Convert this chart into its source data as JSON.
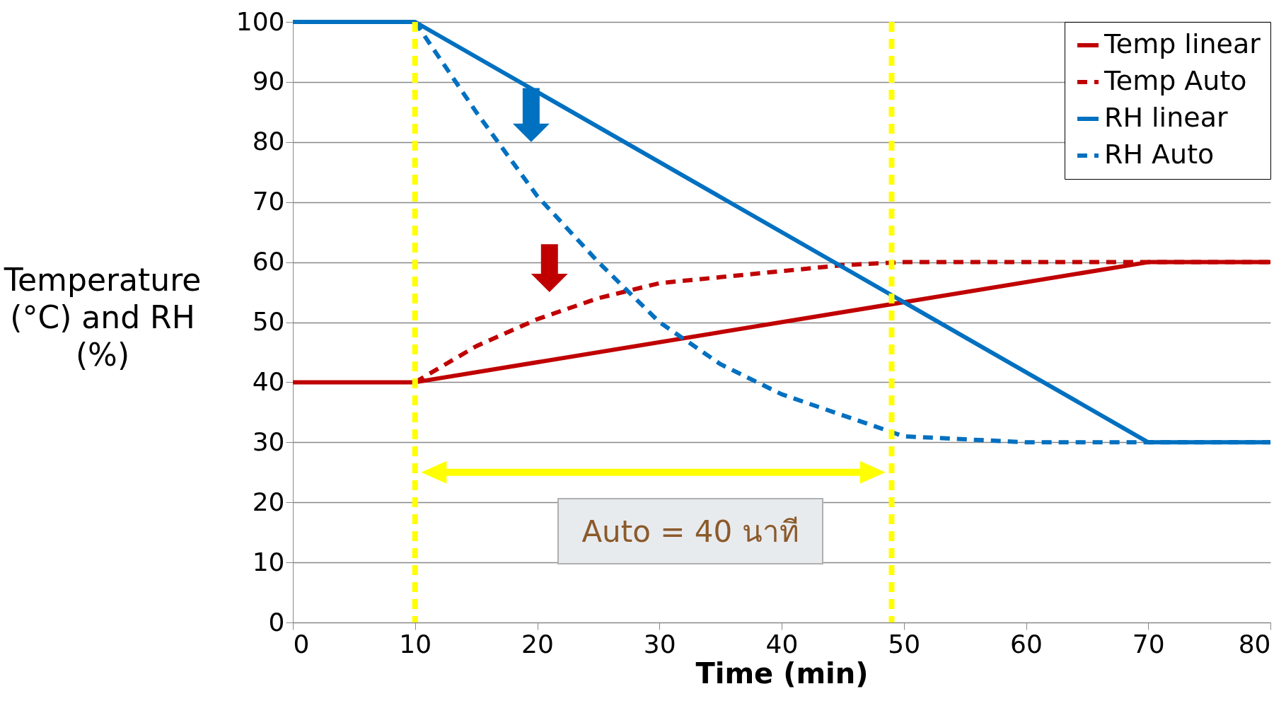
{
  "chart_data": {
    "type": "line",
    "xlabel": "Time (min)",
    "ylabel": "Temperature (°C) and RH (%)",
    "xlim": [
      0,
      80
    ],
    "xticks": [
      0,
      10,
      20,
      30,
      40,
      50,
      60,
      70,
      80
    ],
    "ylim": [
      0,
      100
    ],
    "yticks": [
      0,
      10,
      20,
      30,
      40,
      50,
      60,
      70,
      80,
      90,
      100
    ],
    "grid": "y",
    "legend": "top right",
    "marker": "none",
    "series": [
      {
        "name": "Temp linear",
        "color": "#c00000",
        "line_style": "solid",
        "x": [
          0,
          10,
          70,
          80
        ],
        "values": [
          40,
          40,
          60,
          60
        ]
      },
      {
        "name": "Temp Auto",
        "color": "#c00000",
        "line_style": "dashed",
        "x": [
          10,
          15,
          20,
          25,
          30,
          35,
          40,
          45,
          50,
          60,
          70,
          80
        ],
        "values": [
          40,
          46,
          50.5,
          54,
          56.5,
          57.5,
          58.5,
          59.5,
          60,
          60,
          60,
          60
        ]
      },
      {
        "name": "RH linear",
        "color": "#0070c0",
        "line_style": "solid",
        "x": [
          0,
          10,
          70,
          80
        ],
        "values": [
          100,
          100,
          30,
          30
        ]
      },
      {
        "name": "RH Auto",
        "color": "#0070c0",
        "line_style": "dashed",
        "x": [
          10,
          15,
          20,
          25,
          30,
          35,
          40,
          45,
          50,
          55,
          60,
          70,
          80
        ],
        "values": [
          100,
          85,
          71,
          60,
          50,
          43,
          38,
          34.5,
          31,
          30.5,
          30,
          30,
          30
        ]
      }
    ],
    "ref_lines": [
      {
        "axis": "x",
        "value": 10,
        "color": "#ffff00",
        "line_style": "dashed"
      },
      {
        "axis": "x",
        "value": 49,
        "color": "#ffff00",
        "line_style": "dashed"
      }
    ],
    "annotations": [
      "Auto = 40 นาที"
    ]
  }
}
